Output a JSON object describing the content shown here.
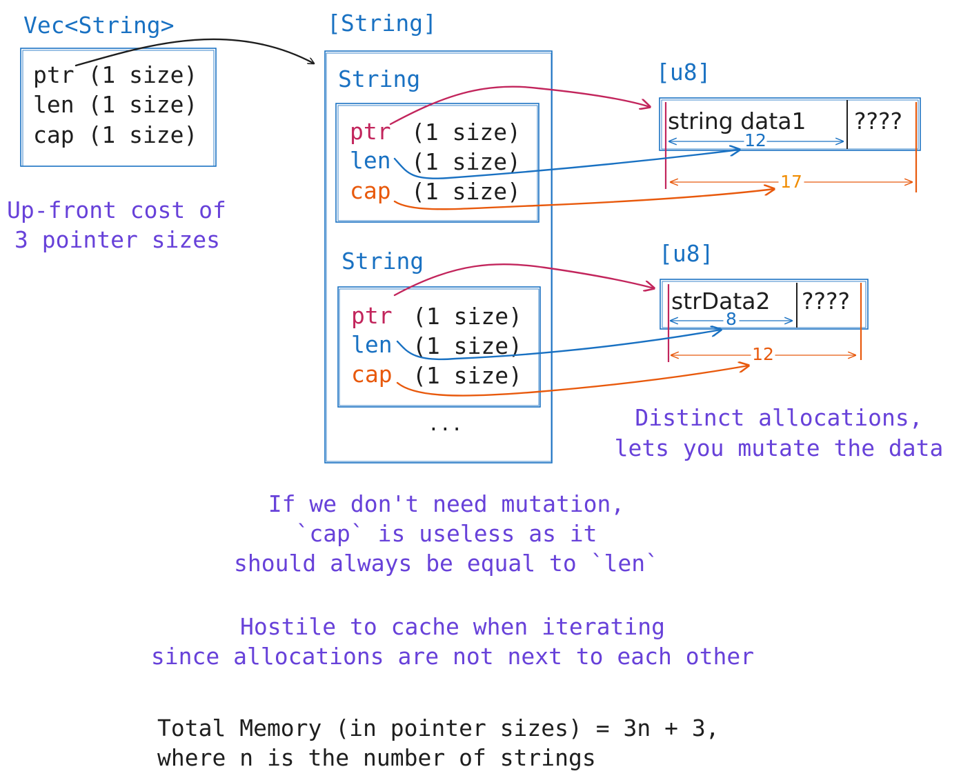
{
  "vec": {
    "title": "Vec<String>",
    "fields": [
      "ptr (1 size)",
      "len (1 size)",
      "cap (1 size)"
    ]
  },
  "upfront_note": {
    "line1": "Up-front cost of",
    "line2": "3 pointer sizes"
  },
  "slice": {
    "title": "[String]",
    "ellipsis": "...",
    "strings": [
      {
        "title": "String",
        "ptr_label": "ptr",
        "len_label": "len",
        "cap_label": "cap",
        "size_text": "(1 size)"
      },
      {
        "title": "String",
        "ptr_label": "ptr",
        "len_label": "len",
        "cap_label": "cap",
        "size_text": "(1 size)"
      }
    ]
  },
  "buffers": [
    {
      "title": "[u8]",
      "data": "string data1",
      "unused": "????",
      "len": 12,
      "cap": 17
    },
    {
      "title": "[u8]",
      "data": "strData2",
      "unused": "????",
      "len": 8,
      "cap": 12
    }
  ],
  "notes": {
    "distinct_line1": "Distinct allocations,",
    "distinct_line2": "lets you mutate the data",
    "mutation_line1": "If we don't need mutation,",
    "mutation_line2": "`cap` is useless as it",
    "mutation_line3": "should always be equal to `len`",
    "cache_line1": "Hostile to cache when iterating",
    "cache_line2": "since allocations are not next to each other",
    "total_line1": "Total Memory (in pointer sizes) = 3n + 3,",
    "total_line2": "where n is the number of strings"
  },
  "colors": {
    "box": "#1971c2",
    "text": "#1e1e1e",
    "note": "#6741d9",
    "ptr": "#c2255c",
    "len": "#1971c2",
    "cap": "#e8590c",
    "cap_label": "#f08c00"
  }
}
